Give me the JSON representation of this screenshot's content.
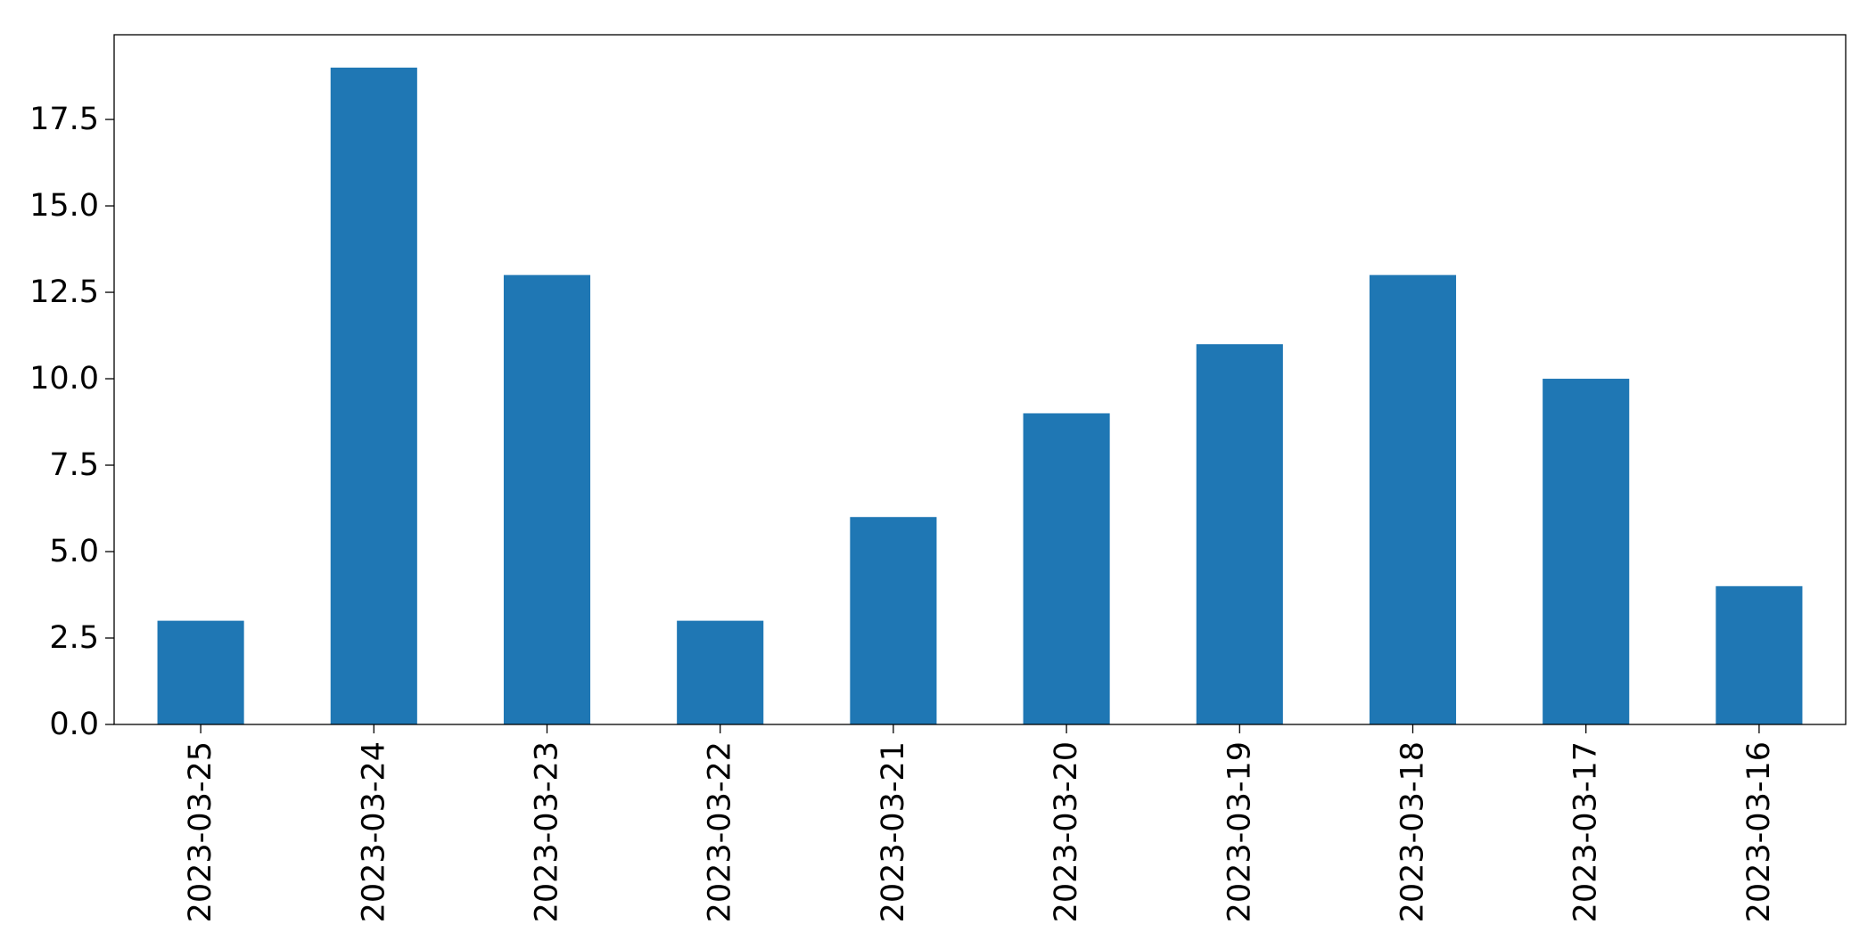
{
  "chart_data": {
    "type": "bar",
    "title": "",
    "xlabel": "",
    "ylabel": "",
    "categories": [
      "2023-03-25",
      "2023-03-24",
      "2023-03-23",
      "2023-03-22",
      "2023-03-21",
      "2023-03-20",
      "2023-03-19",
      "2023-03-18",
      "2023-03-17",
      "2023-03-16"
    ],
    "values": [
      3,
      19,
      13,
      3,
      6,
      9,
      11,
      13,
      10,
      4
    ],
    "ylim": [
      0,
      19.95
    ],
    "yticks": [
      "0.0",
      "2.5",
      "5.0",
      "7.5",
      "10.0",
      "12.5",
      "15.0",
      "17.5"
    ],
    "ytick_values": [
      0,
      2.5,
      5,
      7.5,
      10,
      12.5,
      15,
      17.5
    ],
    "bar_color": "#1f77b4",
    "grid": false,
    "legend": "none"
  }
}
